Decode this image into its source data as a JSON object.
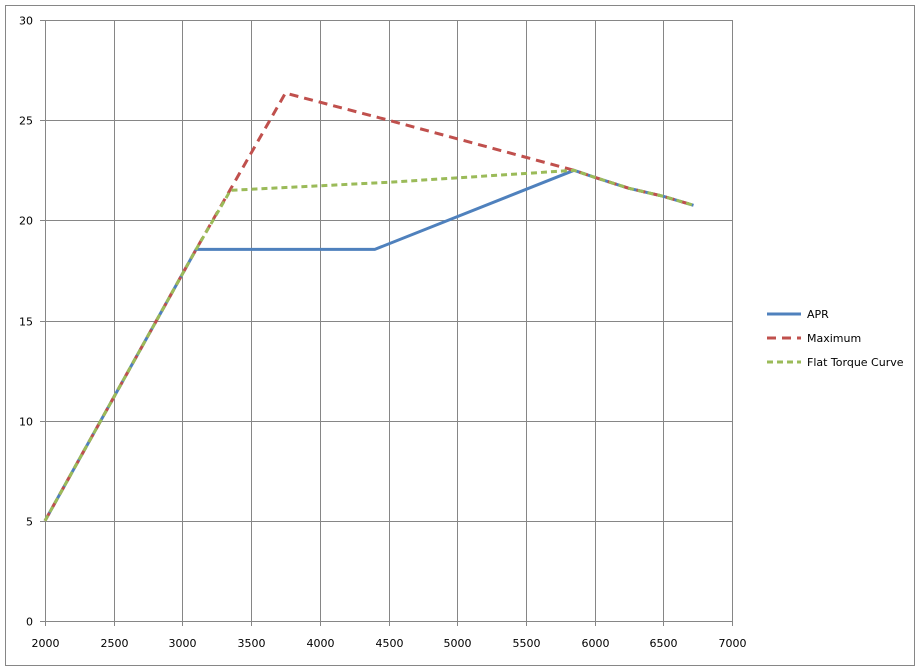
{
  "chart_data": {
    "type": "line",
    "title": "",
    "xlabel": "",
    "ylabel": "",
    "xlim": [
      2000,
      7000
    ],
    "ylim": [
      0,
      30
    ],
    "x_ticks": [
      2000,
      2500,
      3000,
      3500,
      4000,
      4500,
      5000,
      5500,
      6000,
      6500,
      7000
    ],
    "y_ticks": [
      0,
      5,
      10,
      15,
      20,
      25,
      30
    ],
    "grid": true,
    "legend_position": "right",
    "series": [
      {
        "name": "APR",
        "color": "#4f81bd",
        "dash": "solid",
        "points": [
          [
            2000,
            5
          ],
          [
            3100,
            18.55
          ],
          [
            4400,
            18.55
          ],
          [
            5850,
            22.5
          ],
          [
            6000,
            22.15
          ],
          [
            6250,
            21.6
          ],
          [
            6500,
            21.2
          ],
          [
            6720,
            20.75
          ]
        ]
      },
      {
        "name": "Maximum",
        "color": "#c0504d",
        "dash": "long-dash",
        "points": [
          [
            2000,
            5
          ],
          [
            3100,
            18.55
          ],
          [
            3750,
            26.35
          ],
          [
            4500,
            25.0
          ],
          [
            5850,
            22.5
          ],
          [
            6000,
            22.15
          ],
          [
            6250,
            21.6
          ],
          [
            6500,
            21.2
          ],
          [
            6720,
            20.75
          ]
        ]
      },
      {
        "name": "Flat Torque Curve",
        "color": "#9bbb59",
        "dash": "short-dash",
        "points": [
          [
            2000,
            5
          ],
          [
            3100,
            18.55
          ],
          [
            3350,
            21.5
          ],
          [
            4500,
            21.9
          ],
          [
            5850,
            22.5
          ],
          [
            6000,
            22.15
          ],
          [
            6250,
            21.6
          ],
          [
            6500,
            21.2
          ],
          [
            6720,
            20.75
          ]
        ]
      }
    ]
  },
  "legend": {
    "items": [
      {
        "label": "APR"
      },
      {
        "label": "Maximum"
      },
      {
        "label": "Flat Torque Curve"
      }
    ]
  }
}
